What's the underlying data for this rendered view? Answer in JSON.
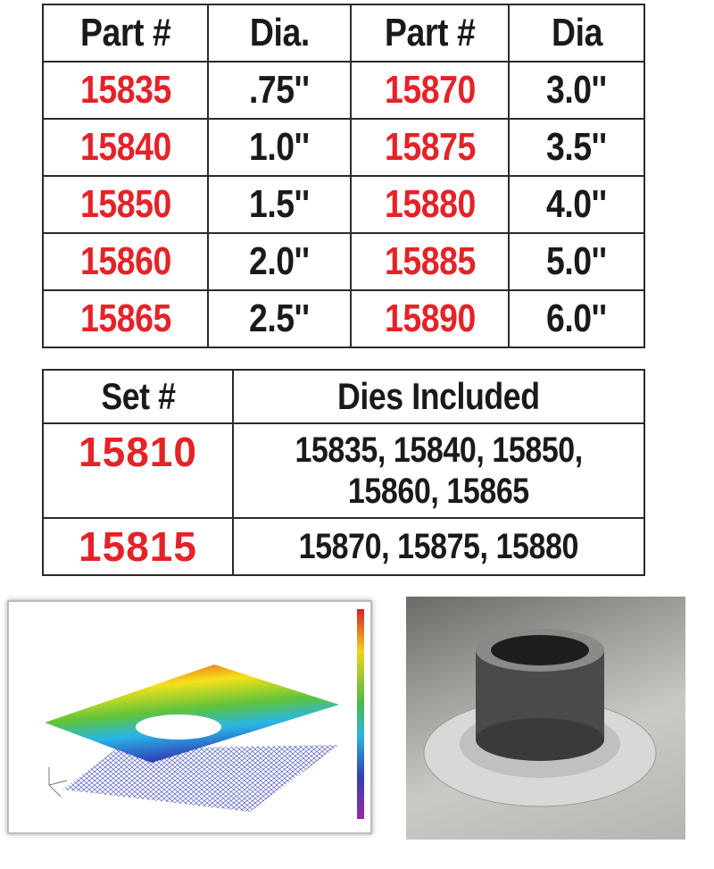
{
  "parts_table": {
    "headers": [
      "Part #",
      "Dia.",
      "Part #",
      "Dia"
    ],
    "rows": [
      [
        "15835",
        ".75''",
        "15870",
        "3.0''"
      ],
      [
        "15840",
        "1.0''",
        "15875",
        "3.5''"
      ],
      [
        "15850",
        "1.5''",
        "15880",
        "4.0''"
      ],
      [
        "15860",
        "2.0''",
        "15885",
        "5.0''"
      ],
      [
        "15865",
        "2.5''",
        "15890",
        "6.0''"
      ]
    ]
  },
  "sets_table": {
    "headers": [
      "Set #",
      "Dies Included"
    ],
    "rows": [
      {
        "set": "15810",
        "dies_line1": "15835, 15840, 15850,",
        "dies_line2": "15860, 15865"
      },
      {
        "set": "15815",
        "dies_line1": "15870, 15875, 15880",
        "dies_line2": ""
      }
    ]
  },
  "colors": {
    "part_number": "#e42328",
    "text": "#1a1a1a"
  }
}
